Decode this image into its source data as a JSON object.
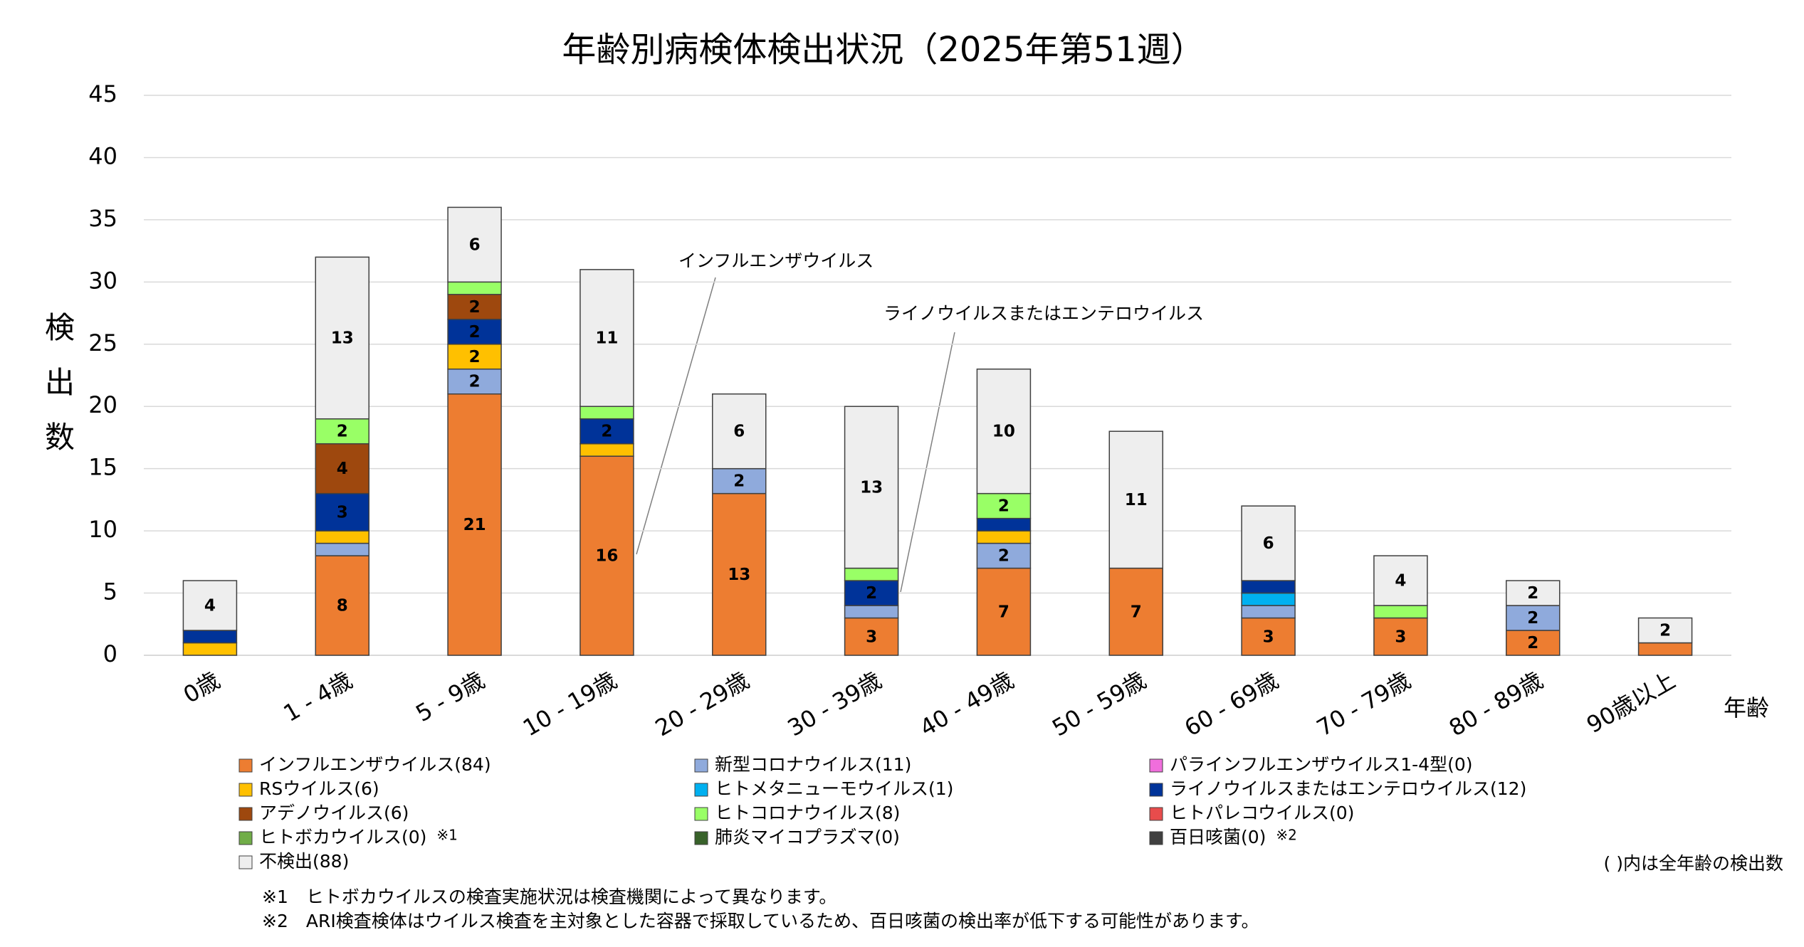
{
  "chart_data": {
    "type": "stacked_bar",
    "title": "年齢別病検体検出状況（2025年第51週）",
    "y_label": "検出数",
    "x_label": "年齢",
    "categories": [
      "0歳",
      "1 - 4歳",
      "5 - 9歳",
      "10 - 19歳",
      "20 - 29歳",
      "30 - 39歳",
      "40 - 49歳",
      "50 - 59歳",
      "60 - 69歳",
      "70 - 79歳",
      "80 - 89歳",
      "90歳以上"
    ],
    "series": [
      {
        "name": "インフルエンザウイルス(84)",
        "color": "#ED7D31",
        "values": [
          0,
          8,
          21,
          16,
          13,
          3,
          7,
          7,
          3,
          3,
          2,
          1
        ]
      },
      {
        "name": "新型コロナウイルス(11)",
        "color": "#8FAADC",
        "values": [
          0,
          1,
          2,
          0,
          2,
          1,
          2,
          0,
          1,
          0,
          2,
          0
        ]
      },
      {
        "name": "パラインフルエンザウイルス1-4型(0)",
        "color": "#F06EDC",
        "values": [
          0,
          0,
          0,
          0,
          0,
          0,
          0,
          0,
          0,
          0,
          0,
          0
        ]
      },
      {
        "name": "RSウイルス(6)",
        "color": "#FFC000",
        "values": [
          1,
          1,
          2,
          1,
          0,
          0,
          1,
          0,
          0,
          0,
          0,
          0
        ]
      },
      {
        "name": "ヒトメタニューモウイルス(1)",
        "color": "#00B0F0",
        "values": [
          0,
          0,
          0,
          0,
          0,
          0,
          0,
          0,
          1,
          0,
          0,
          0
        ]
      },
      {
        "name": "ライノウイルスまたはエンテロウイルス(12)",
        "color": "#003399",
        "values": [
          1,
          3,
          2,
          2,
          0,
          2,
          1,
          0,
          1,
          0,
          0,
          0
        ]
      },
      {
        "name": "アデノウイルス(6)",
        "color": "#9E480E",
        "values": [
          0,
          4,
          2,
          0,
          0,
          0,
          0,
          0,
          0,
          0,
          0,
          0
        ]
      },
      {
        "name": "ヒトコロナウイルス(8)",
        "color": "#99FF66",
        "values": [
          0,
          2,
          1,
          1,
          0,
          1,
          2,
          0,
          0,
          1,
          0,
          0
        ]
      },
      {
        "name": "ヒトパレコウイルス(0)",
        "color": "#E84C4C",
        "values": [
          0,
          0,
          0,
          0,
          0,
          0,
          0,
          0,
          0,
          0,
          0,
          0
        ]
      },
      {
        "name": "ヒトボカウイルス(0)",
        "color": "#70AD47",
        "note": "※1",
        "values": [
          0,
          0,
          0,
          0,
          0,
          0,
          0,
          0,
          0,
          0,
          0,
          0
        ]
      },
      {
        "name": "肺炎マイコプラズマ(0)",
        "color": "#38622A",
        "values": [
          0,
          0,
          0,
          0,
          0,
          0,
          0,
          0,
          0,
          0,
          0,
          0
        ]
      },
      {
        "name": "百日咳菌(0)",
        "color": "#404040",
        "note": "※2",
        "values": [
          0,
          0,
          0,
          0,
          0,
          0,
          0,
          0,
          0,
          0,
          0,
          0
        ]
      },
      {
        "name": "不検出(88)",
        "color": "#EEEEEE",
        "values": [
          4,
          13,
          6,
          11,
          6,
          13,
          10,
          11,
          6,
          4,
          2,
          2
        ]
      }
    ],
    "ylim": [
      0,
      45
    ],
    "yticks": [
      0,
      5,
      10,
      15,
      20,
      25,
      30,
      35,
      40,
      45
    ],
    "grid": true,
    "annotations": [
      {
        "text": "インフルエンザウイルス"
      },
      {
        "text": "ライノウイルスまたはエンテロウイルス"
      }
    ],
    "legend_note": "( )内は全年齢の検出数",
    "footnotes": [
      "※1　ヒトボカウイルスの検査実施状況は検査機関によって異なります。",
      "※2　ARI検査検体はウイルス検査を主対象とした容器で採取しているため、百日咳菌の検出率が低下する可能性があります。"
    ]
  }
}
